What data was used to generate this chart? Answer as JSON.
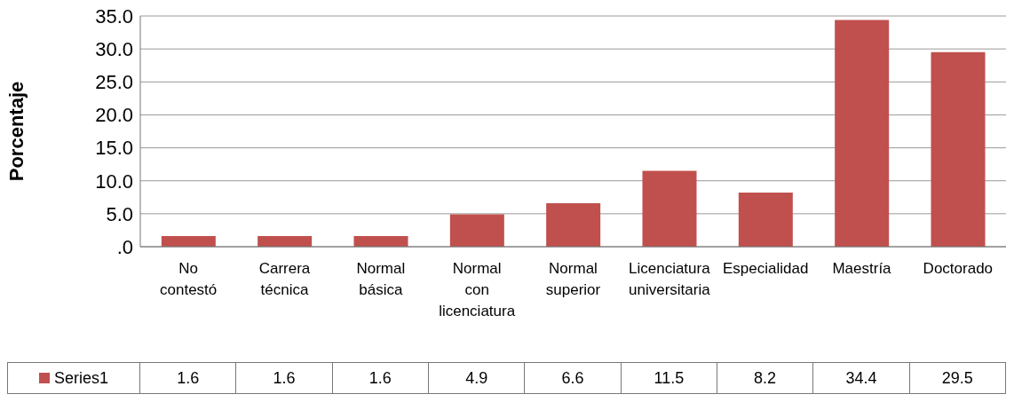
{
  "chart_data": {
    "type": "bar",
    "ylabel": "Porcentaje",
    "categories": [
      "No contestó",
      "Carrera técnica",
      "Normal básica",
      "Normal con licenciatura",
      "Normal superior",
      "Licenciatura universitaria",
      "Especialidad",
      "Maestría",
      "Doctorado"
    ],
    "series": [
      {
        "name": "Series1",
        "color": "#c0504d",
        "values": [
          1.6,
          1.6,
          1.6,
          4.9,
          6.6,
          11.5,
          8.2,
          34.4,
          29.5
        ]
      }
    ],
    "ylim": [
      0,
      35
    ],
    "yticks": [
      {
        "value": 0,
        "label": ".0"
      },
      {
        "value": 5,
        "label": "5.0"
      },
      {
        "value": 10,
        "label": "10.0"
      },
      {
        "value": 15,
        "label": "15.0"
      },
      {
        "value": 20,
        "label": "20.0"
      },
      {
        "value": 25,
        "label": "25.0"
      },
      {
        "value": 30,
        "label": "30.0"
      },
      {
        "value": 35,
        "label": "35.0"
      }
    ],
    "grid": "y",
    "data_labels": true,
    "legend": "bottom left"
  }
}
